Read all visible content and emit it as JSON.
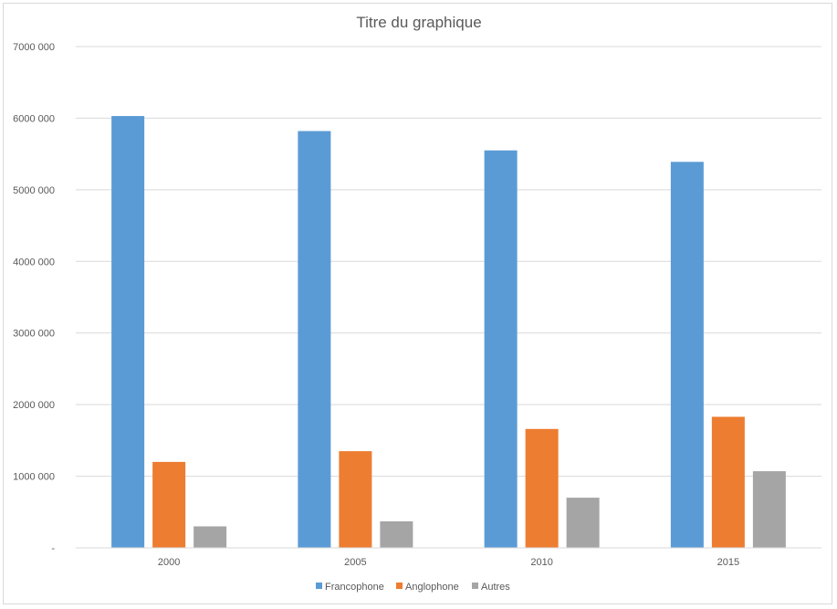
{
  "chart_data": {
    "type": "bar",
    "title": "Titre du graphique",
    "xlabel": "",
    "ylabel": "",
    "categories": [
      "2000",
      "2005",
      "2010",
      "2015"
    ],
    "series": [
      {
        "name": "Francophone",
        "color": "#5b9bd5",
        "values": [
          6030000,
          5820000,
          5550000,
          5390000
        ]
      },
      {
        "name": "Anglophone",
        "color": "#ed7d31",
        "values": [
          1200000,
          1350000,
          1660000,
          1830000
        ]
      },
      {
        "name": "Autres",
        "color": "#a5a5a5",
        "values": [
          300000,
          370000,
          700000,
          1070000
        ]
      }
    ],
    "ylim": [
      0,
      7000000
    ],
    "yticks": [
      0,
      1000000,
      2000000,
      3000000,
      4000000,
      5000000,
      6000000,
      7000000
    ],
    "ytick_labels": [
      "-",
      "1000 000",
      "2000 000",
      "3000 000",
      "4000 000",
      "5000 000",
      "6000 000",
      "7000 000"
    ],
    "grid": true,
    "legend_position": "bottom"
  }
}
